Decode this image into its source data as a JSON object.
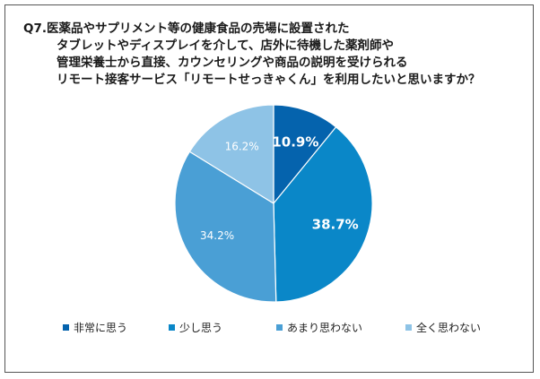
{
  "title_lines": [
    "Q7.医薬品やサプリメント等の健康食品の売場に設置された",
    "タブレットやディスプレイを介して、店外に待機した薬剤師や",
    "管理栄養士から直接、カウンセリングや商品の説明を受けられる",
    "リモート接客サービス「リモートせっきゃくん」を利用したいと思いますか？"
  ],
  "chart_data": {
    "type": "pie",
    "title": "Q7.医薬品やサプリメント等の健康食品の売場に設置された タブレットやディスプレイを介して、店外に待機した薬剤師や 管理栄養士から直接、カウンセリングや商品の説明を受けられる リモート接客サービス「リモートせっきゃくん」を利用したいと思いますか？",
    "categories": [
      "非常に思う",
      "少し思う",
      "あまり思わない",
      "全く思わない"
    ],
    "values": [
      10.9,
      38.7,
      34.2,
      16.2
    ],
    "data_labels": [
      "10.9%",
      "38.7%",
      "34.2%",
      "16.2%"
    ],
    "colors": [
      "#0563ad",
      "#0a87c8",
      "#4a9fd5",
      "#8ec3e6"
    ],
    "label_colors": [
      "#ffffff",
      "#ffffff",
      "#ffffff",
      "#ffffff"
    ],
    "label_bold": [
      true,
      true,
      false,
      false
    ],
    "start_angle_deg": 0,
    "direction": "clockwise",
    "legend_position": "bottom"
  }
}
